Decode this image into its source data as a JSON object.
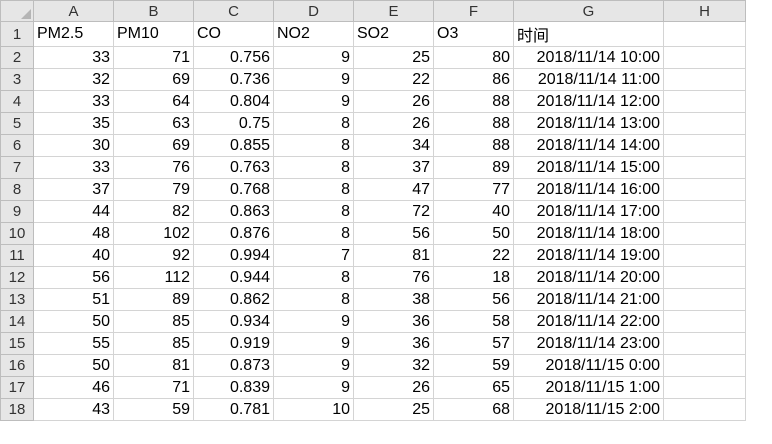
{
  "columns": [
    "A",
    "B",
    "C",
    "D",
    "E",
    "F",
    "G",
    "H"
  ],
  "headers": [
    "PM2.5",
    "PM10",
    "CO",
    "NO2",
    "SO2",
    "O3",
    "时间",
    ""
  ],
  "rows": [
    {
      "row": "2",
      "cells": [
        "33",
        "71",
        "0.756",
        "9",
        "25",
        "80",
        "2018/11/14 10:00",
        ""
      ]
    },
    {
      "row": "3",
      "cells": [
        "32",
        "69",
        "0.736",
        "9",
        "22",
        "86",
        "2018/11/14 11:00",
        ""
      ]
    },
    {
      "row": "4",
      "cells": [
        "33",
        "64",
        "0.804",
        "9",
        "26",
        "88",
        "2018/11/14 12:00",
        ""
      ]
    },
    {
      "row": "5",
      "cells": [
        "35",
        "63",
        "0.75",
        "8",
        "26",
        "88",
        "2018/11/14 13:00",
        ""
      ]
    },
    {
      "row": "6",
      "cells": [
        "30",
        "69",
        "0.855",
        "8",
        "34",
        "88",
        "2018/11/14 14:00",
        ""
      ]
    },
    {
      "row": "7",
      "cells": [
        "33",
        "76",
        "0.763",
        "8",
        "37",
        "89",
        "2018/11/14 15:00",
        ""
      ]
    },
    {
      "row": "8",
      "cells": [
        "37",
        "79",
        "0.768",
        "8",
        "47",
        "77",
        "2018/11/14 16:00",
        ""
      ]
    },
    {
      "row": "9",
      "cells": [
        "44",
        "82",
        "0.863",
        "8",
        "72",
        "40",
        "2018/11/14 17:00",
        ""
      ]
    },
    {
      "row": "10",
      "cells": [
        "48",
        "102",
        "0.876",
        "8",
        "56",
        "50",
        "2018/11/14 18:00",
        ""
      ]
    },
    {
      "row": "11",
      "cells": [
        "40",
        "92",
        "0.994",
        "7",
        "81",
        "22",
        "2018/11/14 19:00",
        ""
      ]
    },
    {
      "row": "12",
      "cells": [
        "56",
        "112",
        "0.944",
        "8",
        "76",
        "18",
        "2018/11/14 20:00",
        ""
      ]
    },
    {
      "row": "13",
      "cells": [
        "51",
        "89",
        "0.862",
        "8",
        "38",
        "56",
        "2018/11/14 21:00",
        ""
      ]
    },
    {
      "row": "14",
      "cells": [
        "50",
        "85",
        "0.934",
        "9",
        "36",
        "58",
        "2018/11/14 22:00",
        ""
      ]
    },
    {
      "row": "15",
      "cells": [
        "55",
        "85",
        "0.919",
        "9",
        "36",
        "57",
        "2018/11/14 23:00",
        ""
      ]
    },
    {
      "row": "16",
      "cells": [
        "50",
        "81",
        "0.873",
        "9",
        "32",
        "59",
        "2018/11/15 0:00",
        ""
      ]
    },
    {
      "row": "17",
      "cells": [
        "46",
        "71",
        "0.839",
        "9",
        "26",
        "65",
        "2018/11/15 1:00",
        ""
      ]
    },
    {
      "row": "18",
      "cells": [
        "43",
        "59",
        "0.781",
        "10",
        "25",
        "68",
        "2018/11/15 2:00",
        ""
      ]
    }
  ]
}
